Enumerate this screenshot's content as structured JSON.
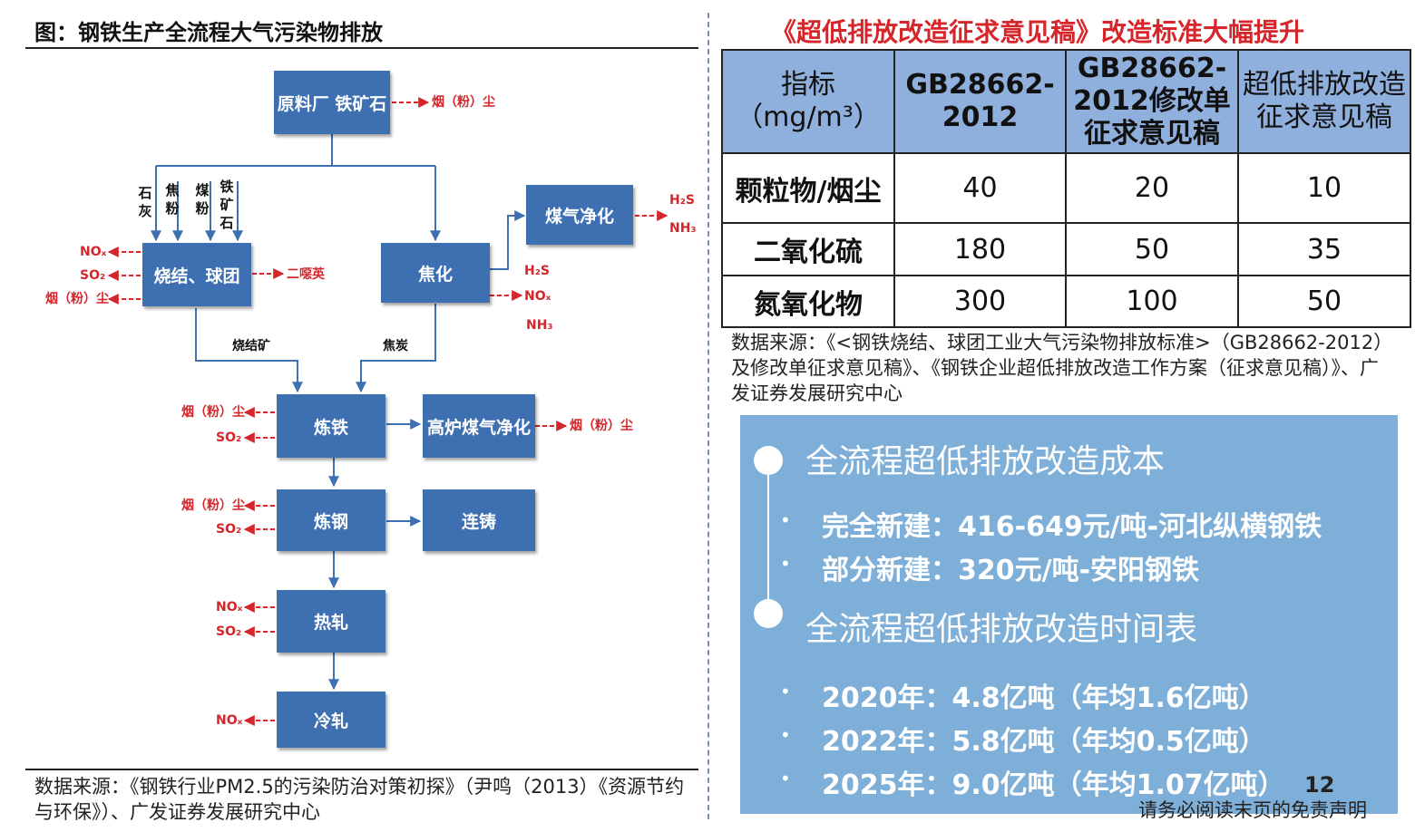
{
  "left": {
    "title": "图：钢铁生产全流程大气污染物排放",
    "boxes": {
      "raw": "原料厂 铁矿石",
      "sinter": "烧结、球团",
      "coking": "焦化",
      "gas_clean": "煤气净化",
      "iron": "炼铁",
      "bf_gas": "高炉煤气净化",
      "steel": "炼钢",
      "cast": "连铸",
      "hot": "热轧",
      "cold": "冷轧"
    },
    "inputs": [
      "石灰",
      "焦粉",
      "煤粉",
      "铁矿石"
    ],
    "flow_labels": {
      "sinter_ore": "烧结矿",
      "coke": "焦炭"
    },
    "emissions": {
      "dust": "烟（粉）尘",
      "nox": "NOₓ",
      "so2": "SO₂",
      "h2s": "H₂S",
      "nh3": "NH₃",
      "dioxin": "二噁英"
    },
    "source": "数据来源：《钢铁行业PM2.5的污染防治对策初探》（尹鸣（2013）《资源节约与环保》）、广发证券发展研究中心"
  },
  "right": {
    "title": "《超低排放改造征求意见稿》改造标准大幅提升",
    "table": {
      "headers": [
        "指标（mg/m³）",
        "GB28662-2012",
        "GB28662-2012修改单征求意见稿",
        "超低排放改造征求意见稿"
      ],
      "rows": [
        [
          "颗粒物/烟尘",
          "40",
          "20",
          "10"
        ],
        [
          "二氧化硫",
          "180",
          "50",
          "35"
        ],
        [
          "氮氧化物",
          "300",
          "100",
          "50"
        ]
      ]
    },
    "source": "数据来源：《<钢铁烧结、球团工业大气污染物排放标准>（GB28662-2012）及修改单征求意见稿》、《钢铁企业超低排放改造工作方案（征求意见稿）》、广发证券发展研究中心",
    "callout": {
      "cost_title": "全流程超低排放改造成本",
      "cost_items": [
        "完全新建：416-649元/吨-河北纵横钢铁",
        "部分新建：320元/吨-安阳钢铁"
      ],
      "schedule_title": "全流程超低排放改造时间表",
      "schedule_items": [
        "2020年：4.8亿吨（年均1.6亿吨）",
        "2022年：5.8亿吨（年均0.5亿吨）",
        "2025年：9.0亿吨（年均1.07亿吨）"
      ]
    }
  },
  "page_number": "12",
  "disclaimer": "请务必阅读末页的免责声明",
  "colors": {
    "box_blue": "#3d6fb1",
    "emission_red": "#d4262b",
    "table_header": "#8fb0dc",
    "callout_bg": "#7eafd8"
  }
}
